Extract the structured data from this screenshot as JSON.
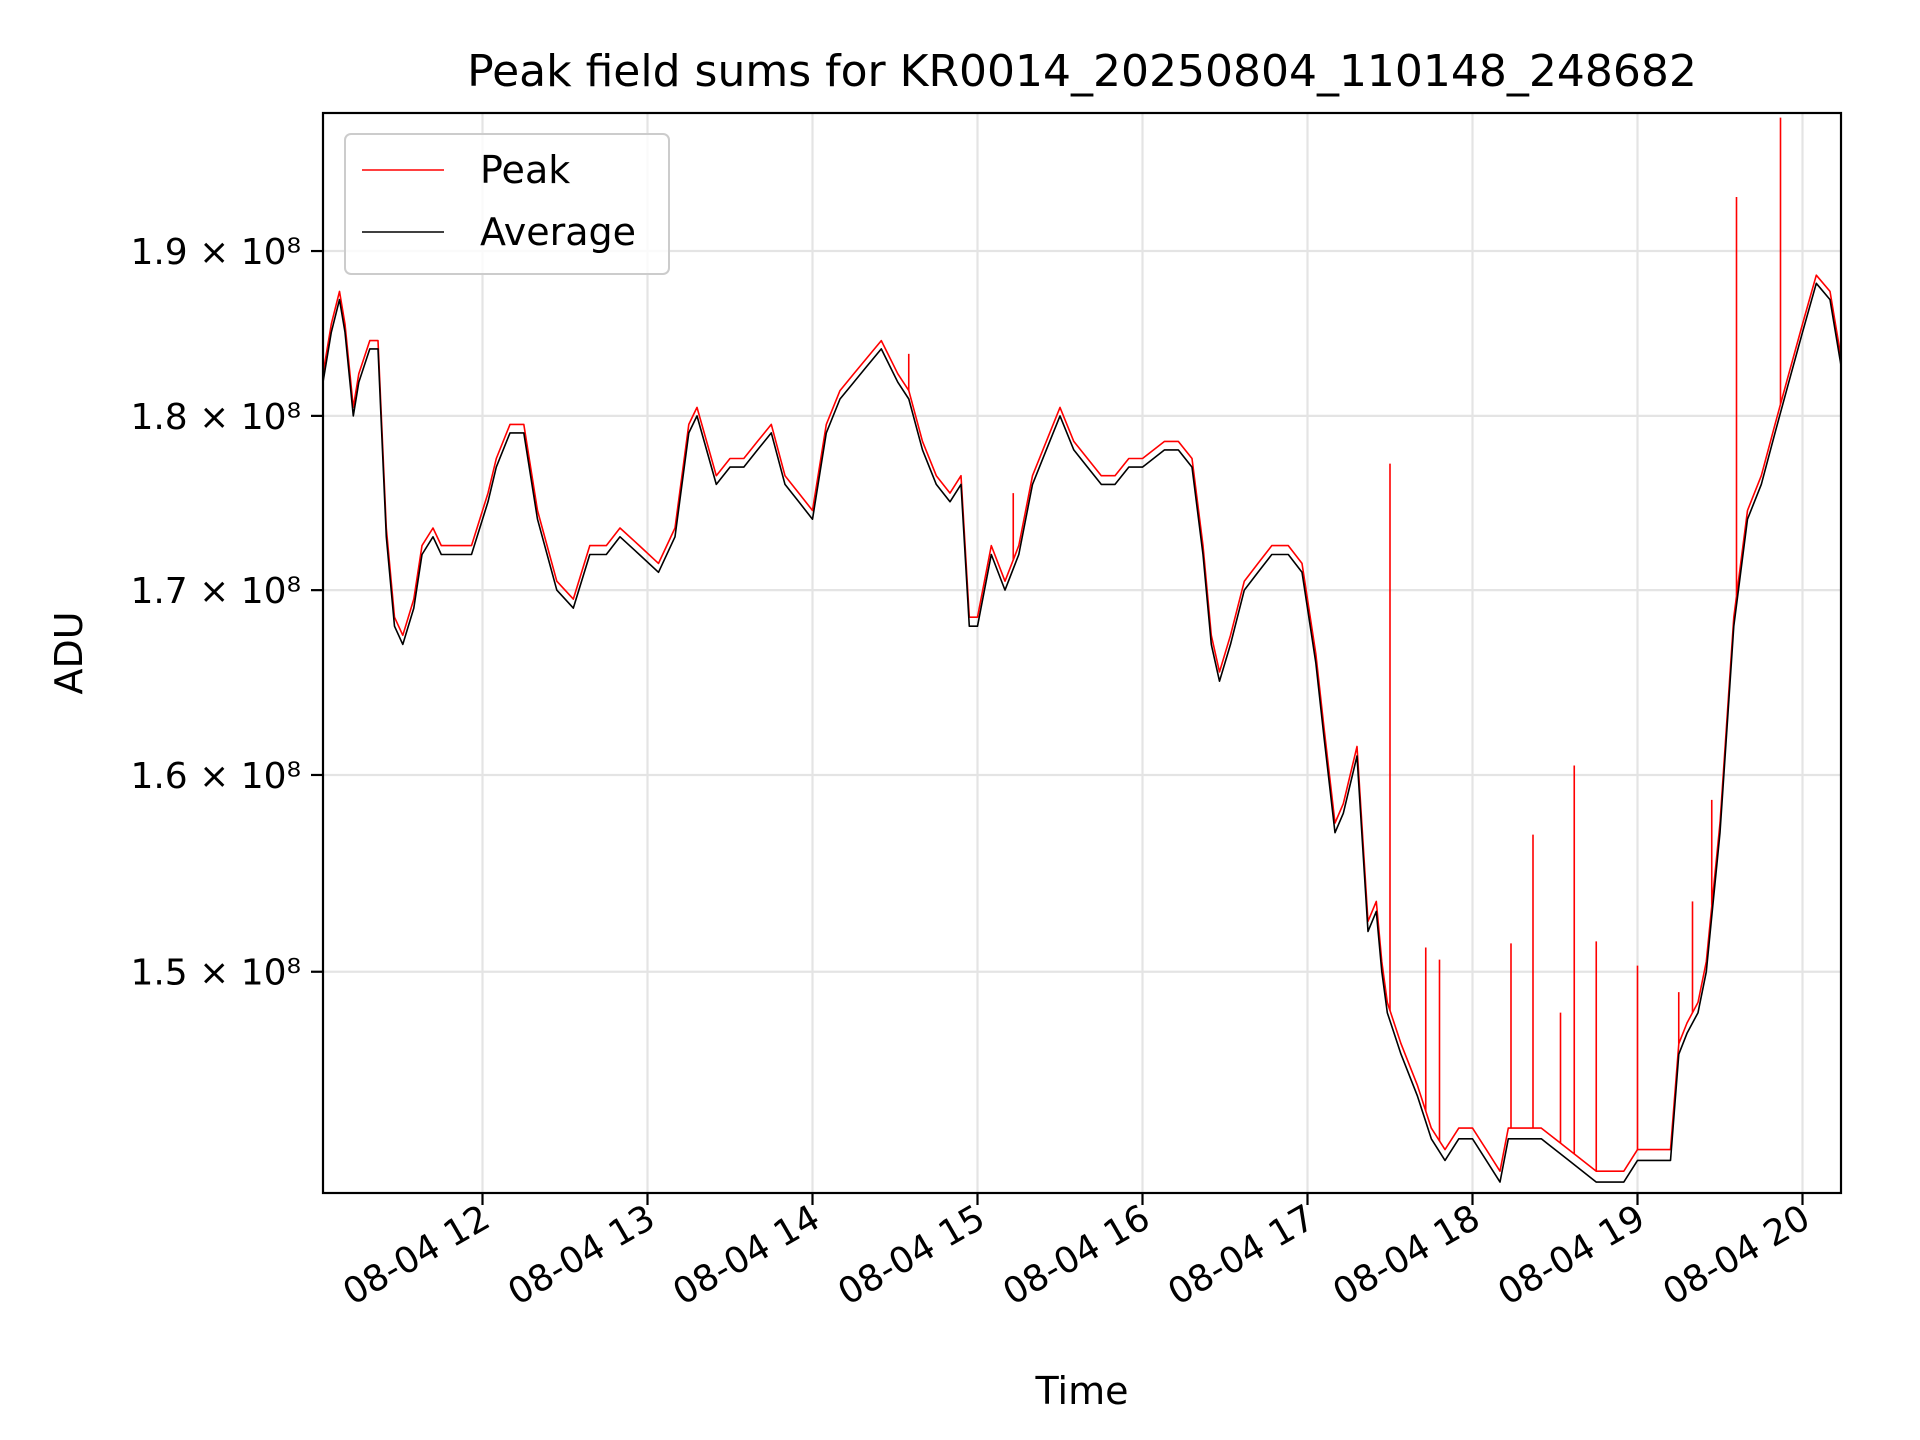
{
  "chart_data": {
    "type": "line",
    "title": "Peak field sums for KR0014_20250804_110148_248682",
    "xlabel": "Time",
    "ylabel": "ADU",
    "y_scale": "log",
    "grid": true,
    "legend_position": "top-left",
    "xlim": [
      "08-04 11:02",
      "08-04 20:14"
    ],
    "ylim": [
      139500000,
      198800000
    ],
    "x_ticks": [
      "08-04 12",
      "08-04 13",
      "08-04 14",
      "08-04 15",
      "08-04 16",
      "08-04 17",
      "08-04 18",
      "08-04 19",
      "08-04 20"
    ],
    "y_ticks": [
      {
        "value": 150000000,
        "label": "1.5 × 10⁸"
      },
      {
        "value": 160000000,
        "label": "1.6 × 10⁸"
      },
      {
        "value": 170000000,
        "label": "1.7 × 10⁸"
      },
      {
        "value": 180000000,
        "label": "1.8 × 10⁸"
      },
      {
        "value": 190000000,
        "label": "1.9 × 10⁸"
      }
    ],
    "series": [
      {
        "name": "Average",
        "color": "#000000",
        "x": [
          "08-04 11:02",
          "08-04 11:05",
          "08-04 11:08",
          "08-04 11:10",
          "08-04 11:13",
          "08-04 11:15",
          "08-04 11:19",
          "08-04 11:22",
          "08-04 11:25",
          "08-04 11:28",
          "08-04 11:31",
          "08-04 11:35",
          "08-04 11:38",
          "08-04 11:42",
          "08-04 11:45",
          "08-04 11:50",
          "08-04 11:56",
          "08-04 12:02",
          "08-04 12:05",
          "08-04 12:10",
          "08-04 12:15",
          "08-04 12:20",
          "08-04 12:27",
          "08-04 12:33",
          "08-04 12:39",
          "08-04 12:45",
          "08-04 12:50",
          "08-04 12:57",
          "08-04 13:04",
          "08-04 13:10",
          "08-04 13:15",
          "08-04 13:18",
          "08-04 13:25",
          "08-04 13:30",
          "08-04 13:35",
          "08-04 13:40",
          "08-04 13:45",
          "08-04 13:50",
          "08-04 13:55",
          "08-04 14:00",
          "08-04 14:05",
          "08-04 14:10",
          "08-04 14:15",
          "08-04 14:20",
          "08-04 14:25",
          "08-04 14:31",
          "08-04 14:35",
          "08-04 14:40",
          "08-04 14:45",
          "08-04 14:50",
          "08-04 14:54",
          "08-04 14:57",
          "08-04 15:00",
          "08-04 15:05",
          "08-04 15:10",
          "08-04 15:15",
          "08-04 15:20",
          "08-04 15:25",
          "08-04 15:30",
          "08-04 15:35",
          "08-04 15:40",
          "08-04 15:45",
          "08-04 15:50",
          "08-04 15:55",
          "08-04 16:00",
          "08-04 16:08",
          "08-04 16:13",
          "08-04 16:18",
          "08-04 16:22",
          "08-04 16:25",
          "08-04 16:28",
          "08-04 16:32",
          "08-04 16:37",
          "08-04 16:42",
          "08-04 16:47",
          "08-04 16:53",
          "08-04 16:58",
          "08-04 17:03",
          "08-04 17:06",
          "08-04 17:10",
          "08-04 17:13",
          "08-04 17:18",
          "08-04 17:22",
          "08-04 17:25",
          "08-04 17:27",
          "08-04 17:29",
          "08-04 17:34",
          "08-04 17:40",
          "08-04 17:45",
          "08-04 17:50",
          "08-04 17:55",
          "08-04 18:00",
          "08-04 18:05",
          "08-04 18:10",
          "08-04 18:13",
          "08-04 18:18",
          "08-04 18:25",
          "08-04 18:35",
          "08-04 18:45",
          "08-04 18:55",
          "08-04 19:00",
          "08-04 19:06",
          "08-04 19:12",
          "08-04 19:15",
          "08-04 19:18",
          "08-04 19:22",
          "08-04 19:25",
          "08-04 19:30",
          "08-04 19:35",
          "08-04 19:40",
          "08-04 19:45",
          "08-04 19:50",
          "08-04 19:55",
          "08-04 20:00",
          "08-04 20:05",
          "08-04 20:10",
          "08-04 20:14"
        ],
        "values": [
          182000000,
          185000000,
          187000000,
          185000000,
          180000000,
          182000000,
          184000000,
          184000000,
          173000000,
          168000000,
          167000000,
          169000000,
          172000000,
          173000000,
          172000000,
          172000000,
          172000000,
          175000000,
          177000000,
          179000000,
          179000000,
          174000000,
          170000000,
          169000000,
          172000000,
          172000000,
          173000000,
          172000000,
          171000000,
          173000000,
          179000000,
          180000000,
          176000000,
          177000000,
          177000000,
          178000000,
          179000000,
          176000000,
          175000000,
          174000000,
          179000000,
          181000000,
          182000000,
          183000000,
          184000000,
          182000000,
          181000000,
          178000000,
          176000000,
          175000000,
          176000000,
          168000000,
          168000000,
          172000000,
          170000000,
          172000000,
          176000000,
          178000000,
          180000000,
          178000000,
          177000000,
          176000000,
          176000000,
          177000000,
          177000000,
          178000000,
          178000000,
          177000000,
          172000000,
          167000000,
          165000000,
          167000000,
          170000000,
          171000000,
          172000000,
          172000000,
          171000000,
          166000000,
          162000000,
          157000000,
          158000000,
          161000000,
          152000000,
          153000000,
          150000000,
          148000000,
          146000000,
          144000000,
          142000000,
          141000000,
          142000000,
          142000000,
          141000000,
          140000000,
          142000000,
          142000000,
          142000000,
          141000000,
          140000000,
          140000000,
          141000000,
          141000000,
          141000000,
          146000000,
          147000000,
          148000000,
          150000000,
          157000000,
          168000000,
          174000000,
          176000000,
          179000000,
          182000000,
          185000000,
          188000000,
          187000000,
          183000000
        ]
      },
      {
        "name": "Peak",
        "color": "#ff0000",
        "x": [
          "08-04 11:02",
          "08-04 11:05",
          "08-04 11:08",
          "08-04 11:10",
          "08-04 11:13",
          "08-04 11:15",
          "08-04 11:19",
          "08-04 11:22",
          "08-04 11:25",
          "08-04 11:28",
          "08-04 11:31",
          "08-04 11:35",
          "08-04 11:38",
          "08-04 11:42",
          "08-04 11:45",
          "08-04 11:50",
          "08-04 11:56",
          "08-04 12:02",
          "08-04 12:05",
          "08-04 12:10",
          "08-04 12:15",
          "08-04 12:20",
          "08-04 12:27",
          "08-04 12:33",
          "08-04 12:39",
          "08-04 12:45",
          "08-04 12:50",
          "08-04 12:57",
          "08-04 13:04",
          "08-04 13:10",
          "08-04 13:15",
          "08-04 13:18",
          "08-04 13:25",
          "08-04 13:30",
          "08-04 13:35",
          "08-04 13:40",
          "08-04 13:45",
          "08-04 13:50",
          "08-04 13:55",
          "08-04 14:00",
          "08-04 14:05",
          "08-04 14:10",
          "08-04 14:15",
          "08-04 14:20",
          "08-04 14:25",
          "08-04 14:31",
          "08-04 14:35",
          "08-04 14:40",
          "08-04 14:45",
          "08-04 14:50",
          "08-04 14:54",
          "08-04 14:57",
          "08-04 15:00",
          "08-04 15:05",
          "08-04 15:10",
          "08-04 15:15",
          "08-04 15:20",
          "08-04 15:25",
          "08-04 15:30",
          "08-04 15:35",
          "08-04 15:40",
          "08-04 15:45",
          "08-04 15:50",
          "08-04 15:55",
          "08-04 16:00",
          "08-04 16:08",
          "08-04 16:13",
          "08-04 16:18",
          "08-04 16:22",
          "08-04 16:25",
          "08-04 16:28",
          "08-04 16:32",
          "08-04 16:37",
          "08-04 16:42",
          "08-04 16:47",
          "08-04 16:53",
          "08-04 16:58",
          "08-04 17:03",
          "08-04 17:06",
          "08-04 17:10",
          "08-04 17:13",
          "08-04 17:18",
          "08-04 17:22",
          "08-04 17:25",
          "08-04 17:27",
          "08-04 17:29",
          "08-04 17:34",
          "08-04 17:40",
          "08-04 17:45",
          "08-04 17:50",
          "08-04 17:55",
          "08-04 18:00",
          "08-04 18:05",
          "08-04 18:10",
          "08-04 18:13",
          "08-04 18:18",
          "08-04 18:25",
          "08-04 18:35",
          "08-04 18:45",
          "08-04 18:55",
          "08-04 19:00",
          "08-04 19:06",
          "08-04 19:12",
          "08-04 19:15",
          "08-04 19:18",
          "08-04 19:22",
          "08-04 19:25",
          "08-04 19:30",
          "08-04 19:35",
          "08-04 19:40",
          "08-04 19:45",
          "08-04 19:50",
          "08-04 19:55",
          "08-04 20:00",
          "08-04 20:05",
          "08-04 20:10",
          "08-04 20:14"
        ],
        "values": [
          182500000,
          185500000,
          187500000,
          185500000,
          180500000,
          182500000,
          184500000,
          184500000,
          173500000,
          168500000,
          167500000,
          169500000,
          172500000,
          173500000,
          172500000,
          172500000,
          172500000,
          175500000,
          177500000,
          179500000,
          179500000,
          174500000,
          170500000,
          169500000,
          172500000,
          172500000,
          173500000,
          172500000,
          171500000,
          173500000,
          179500000,
          180500000,
          176500000,
          177500000,
          177500000,
          178500000,
          179500000,
          176500000,
          175500000,
          174500000,
          179500000,
          181500000,
          182500000,
          183500000,
          184500000,
          182500000,
          181500000,
          178500000,
          176500000,
          175500000,
          176500000,
          168500000,
          168500000,
          172500000,
          170500000,
          172500000,
          176500000,
          178500000,
          180500000,
          178500000,
          177500000,
          176500000,
          176500000,
          177500000,
          177500000,
          178500000,
          178500000,
          177500000,
          172500000,
          167500000,
          165500000,
          167500000,
          170500000,
          171500000,
          172500000,
          172500000,
          171500000,
          166500000,
          162500000,
          157500000,
          158500000,
          161500000,
          152500000,
          153500000,
          150500000,
          148500000,
          146500000,
          144500000,
          142500000,
          141500000,
          142500000,
          142500000,
          141500000,
          140500000,
          142500000,
          142500000,
          142500000,
          141500000,
          140500000,
          140500000,
          141500000,
          141500000,
          141500000,
          146500000,
          147500000,
          148500000,
          150500000,
          157500000,
          168500000,
          174500000,
          176500000,
          179500000,
          182500000,
          185500000,
          188500000,
          187500000,
          183500000
        ],
        "spikes": [
          {
            "x": "08-04 14:35",
            "value": 183700000
          },
          {
            "x": "08-04 15:13",
            "value": 175500000
          },
          {
            "x": "08-04 17:30",
            "value": 177200000
          },
          {
            "x": "08-04 17:43",
            "value": 151200000
          },
          {
            "x": "08-04 17:48",
            "value": 150600000
          },
          {
            "x": "08-04 18:14",
            "value": 151400000
          },
          {
            "x": "08-04 18:22",
            "value": 156900000
          },
          {
            "x": "08-04 18:32",
            "value": 148000000
          },
          {
            "x": "08-04 18:37",
            "value": 160500000
          },
          {
            "x": "08-04 18:45",
            "value": 151500000
          },
          {
            "x": "08-04 19:00",
            "value": 150300000
          },
          {
            "x": "08-04 19:15",
            "value": 149000000
          },
          {
            "x": "08-04 19:20",
            "value": 153500000
          },
          {
            "x": "08-04 19:27",
            "value": 158700000
          },
          {
            "x": "08-04 19:36",
            "value": 193400000
          },
          {
            "x": "08-04 19:52",
            "value": 198500000
          }
        ]
      }
    ]
  }
}
